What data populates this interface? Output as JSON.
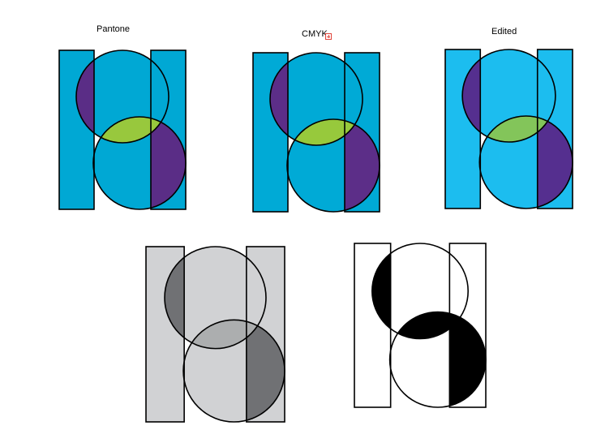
{
  "variants": [
    {
      "key": "pantone",
      "label": "Pantone",
      "colors": {
        "bar": "#00a8d4",
        "left_overlap": "#5a2d86",
        "lens": "#98c83d",
        "right_overlap": "#5a2d86"
      }
    },
    {
      "key": "cmyk",
      "label": "CMYK",
      "colors": {
        "bar": "#00aad6",
        "left_overlap": "#5c2e88",
        "lens": "#97c93c",
        "right_overlap": "#5c2e88"
      }
    },
    {
      "key": "edited",
      "label": "Edited",
      "colors": {
        "bar": "#1cbdef",
        "left_overlap": "#552f8f",
        "lens": "#83c55a",
        "right_overlap": "#552f8f"
      }
    },
    {
      "key": "grayscale",
      "label": "",
      "colors": {
        "bar": "#d1d2d4",
        "left_overlap": "#707174",
        "lens": "#acaeaf",
        "right_overlap": "#707174"
      }
    },
    {
      "key": "black-white",
      "label": "",
      "colors": {
        "bar": "#ffffff",
        "left_overlap": "#000000",
        "lens": "#000000",
        "right_overlap": "#000000"
      }
    }
  ],
  "annotations": {
    "text_overflow_icon": "text-overflow-marker-icon"
  }
}
